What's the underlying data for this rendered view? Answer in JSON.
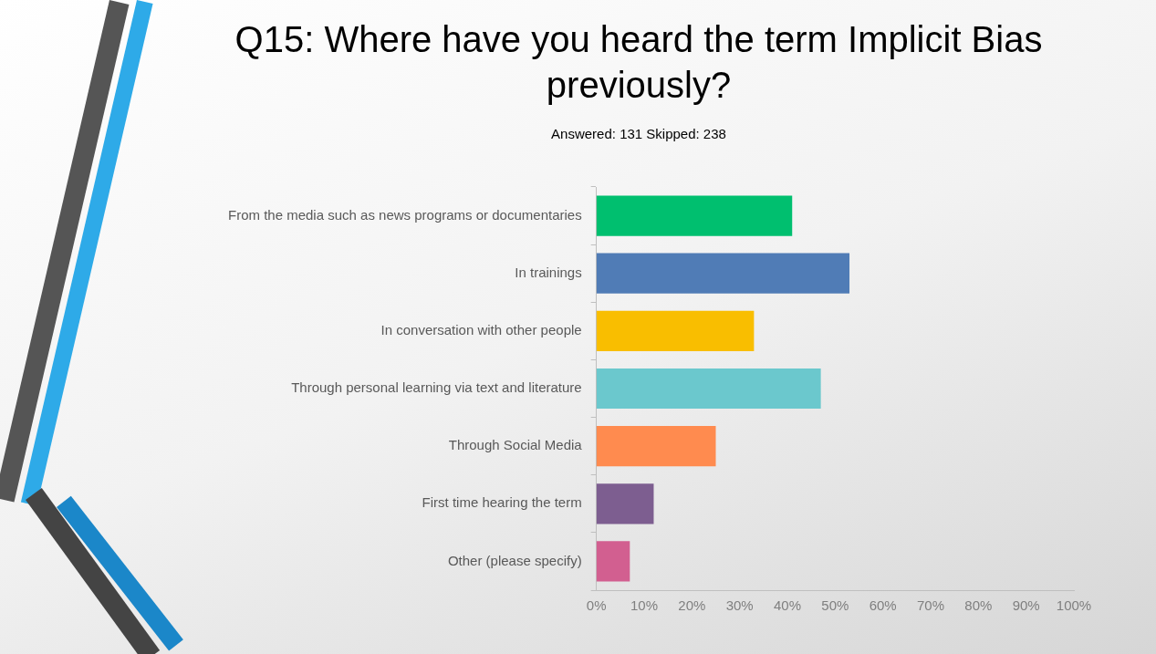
{
  "chart_data": {
    "type": "bar",
    "orientation": "horizontal",
    "title": "Q15: Where have you heard the term Implicit Bias previously?",
    "subtitle": "Answered: 131   Skipped: 238",
    "categories": [
      "From the media such as news programs or documentaries",
      "In trainings",
      "In conversation with other people",
      "Through personal learning via text and literature",
      "Through Social Media",
      "First time hearing the term",
      "Other (please specify)"
    ],
    "values": [
      41,
      53,
      33,
      47,
      25,
      12,
      7
    ],
    "colors": [
      "#00bf6f",
      "#507cb6",
      "#f9be00",
      "#6bc8cd",
      "#ff8b4f",
      "#7d5e90",
      "#d25f90"
    ],
    "xlim": [
      0,
      100
    ],
    "xticks": [
      {
        "value": 0,
        "label": "0%"
      },
      {
        "value": 10,
        "label": "10%"
      },
      {
        "value": 20,
        "label": "20%"
      },
      {
        "value": 30,
        "label": "30%"
      },
      {
        "value": 40,
        "label": "40%"
      },
      {
        "value": 50,
        "label": "50%"
      },
      {
        "value": 60,
        "label": "60%"
      },
      {
        "value": 70,
        "label": "70%"
      },
      {
        "value": 80,
        "label": "80%"
      },
      {
        "value": 90,
        "label": "90%"
      },
      {
        "value": 100,
        "label": "100%"
      }
    ],
    "grid": false,
    "legend": false
  }
}
